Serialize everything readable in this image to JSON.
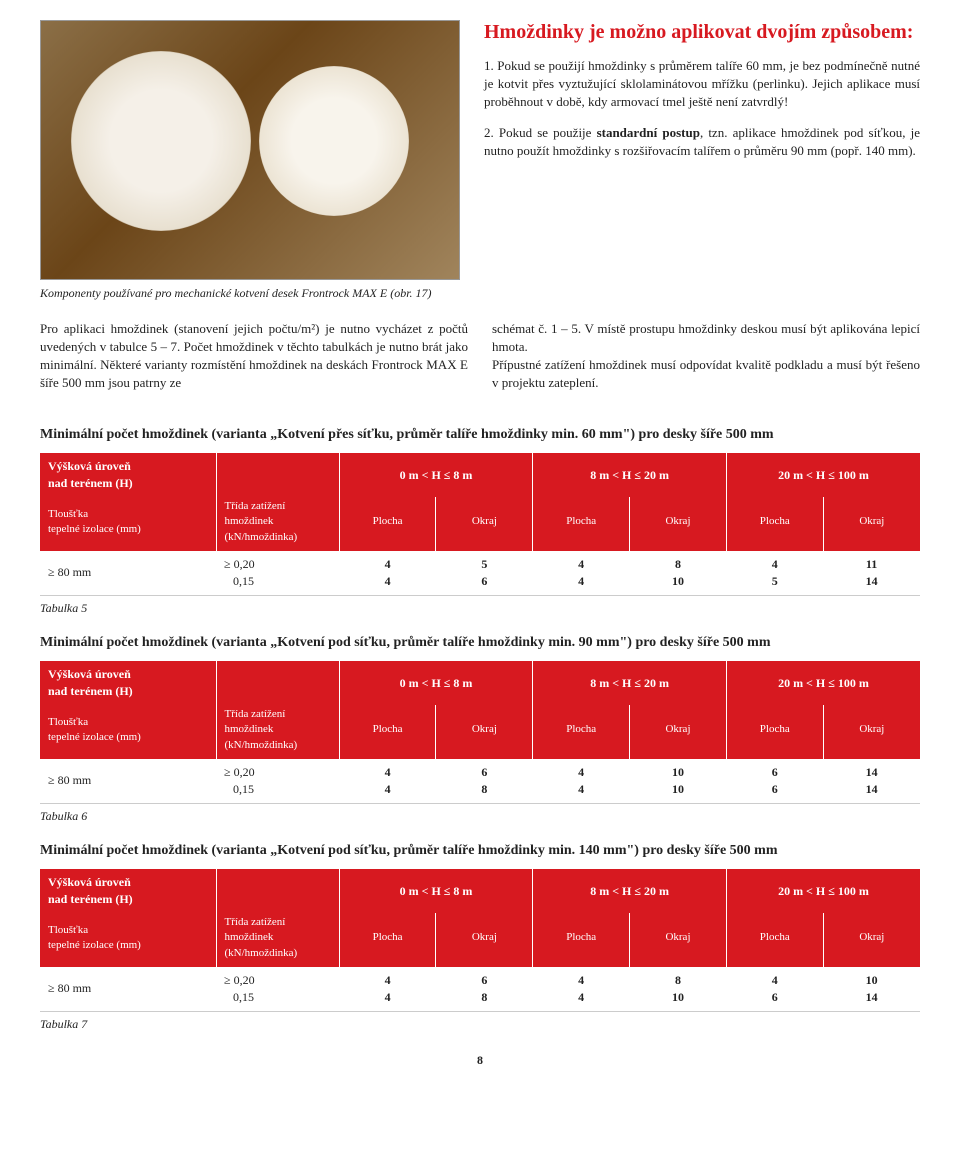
{
  "heading": "Hmoždinky je možno aplikovat dvojím způsobem:",
  "para1": "1. Pokud se použijí hmoždinky s průměrem talíře 60 mm, je bez podmínečně nutné je kotvit přes vyztužující sklolaminátovou mřížku (perlinku). Jejich aplikace musí proběhnout v době, kdy armovací tmel ještě není zatvrdlý!",
  "para2_lead": "2. Pokud se použije ",
  "para2_bold": "standardní postup",
  "para2_rest": ", tzn. aplikace hmoždinek pod síťkou, je nutno použít hmoždinky s rozšiřovacím talířem o průměru 90 mm (popř. 140 mm).",
  "caption": "Komponenty používané pro mechanické kotvení desek Frontrock MAX E (obr. 17)",
  "mid_left": "Pro aplikaci hmoždinek (stanovení jejich počtu/m²) je nutno vycházet z počtů uvedených v tabulce 5 – 7. Počet hmoždinek v těchto tabulkách je nutno brát jako minimální. Některé varianty rozmístění hmoždinek na deskách Frontrock MAX E šíře 500 mm jsou patrny ze",
  "mid_right": "schémat č. 1 – 5. V místě prostupu hmoždinky deskou musí být aplikována lepicí hmota.\nPřípustné zatížení hmoždinek musí odpovídat kvalitě podkladu a musí být řešeno v projektu zateplení.",
  "tables": [
    {
      "title": "Minimální počet hmoždinek (varianta „Kotvení přes síťku, průměr talíře hmoždinky min. 60 mm\") pro desky šíře 500 mm",
      "caption": "Tabulka 5",
      "row": {
        "plocha1": "4\n4",
        "okraj1": "5\n6",
        "plocha2": "4\n4",
        "okraj2": "8\n10",
        "plocha3": "4\n5",
        "okraj3": "11\n14"
      }
    },
    {
      "title": "Minimální počet hmoždinek (varianta „Kotvení pod síťku, průměr talíře hmoždinky min. 90 mm\") pro desky šíře 500 mm",
      "caption": "Tabulka 6",
      "row": {
        "plocha1": "4\n4",
        "okraj1": "6\n8",
        "plocha2": "4\n4",
        "okraj2": "10\n10",
        "plocha3": "6\n6",
        "okraj3": "14\n14"
      }
    },
    {
      "title": "Minimální počet hmoždinek (varianta „Kotvení pod síťku, průměr talíře hmoždinky min. 140 mm\") pro desky šíře 500 mm",
      "caption": "Tabulka 7",
      "row": {
        "plocha1": "4\n4",
        "okraj1": "6\n8",
        "plocha2": "4\n4",
        "okraj2": "8\n10",
        "plocha3": "4\n6",
        "okraj3": "10\n14"
      }
    }
  ],
  "shared": {
    "hdr_left": "Výšková úroveň\nnad terénem (H)",
    "range1": "0 m < H ≤ 8 m",
    "range2": "8 m < H ≤ 20 m",
    "range3": "20 m < H ≤ 100 m",
    "sub_left": "Tloušťka\ntepelné izolace (mm)",
    "sub_load": "Třída zatížení\nhmoždinek\n(kN/hmoždinka)",
    "plocha": "Plocha",
    "okraj": "Okraj",
    "thk": "≥ 80 mm",
    "load": "≥ 0,20\n   0,15"
  },
  "page": "8"
}
